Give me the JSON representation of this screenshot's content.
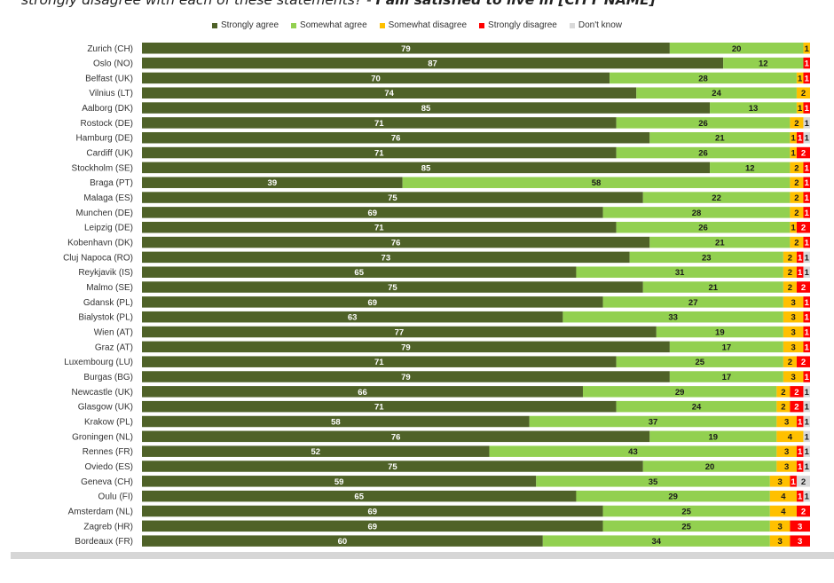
{
  "chart_data": {
    "type": "bar",
    "orientation": "horizontal",
    "stacked": true,
    "title_prefix": "strongly disagree with each of these statements? - ",
    "title_bold": "I am satisfied to live in [CITY NAME]",
    "xlim": [
      0,
      100
    ],
    "legend_position": "top",
    "series": [
      {
        "name": "Strongly agree",
        "color": "#4f6228"
      },
      {
        "name": "Somewhat agree",
        "color": "#92d050"
      },
      {
        "name": "Somewhat disagree",
        "color": "#ffc000"
      },
      {
        "name": "Strongly disagree",
        "color": "#ff0000"
      },
      {
        "name": "Don't know",
        "color": "#d9d9d9"
      }
    ],
    "categories": [
      "Zurich (CH)",
      "Oslo (NO)",
      "Belfast (UK)",
      "Vilnius (LT)",
      "Aalborg (DK)",
      "Rostock (DE)",
      "Hamburg (DE)",
      "Cardiff (UK)",
      "Stockholm (SE)",
      "Braga (PT)",
      "Malaga (ES)",
      "Munchen (DE)",
      "Leipzig (DE)",
      "Kobenhavn (DK)",
      "Cluj Napoca (RO)",
      "Reykjavik (IS)",
      "Malmo (SE)",
      "Gdansk (PL)",
      "Bialystok (PL)",
      "Wien (AT)",
      "Graz (AT)",
      "Luxembourg (LU)",
      "Burgas (BG)",
      "Newcastle (UK)",
      "Glasgow (UK)",
      "Krakow (PL)",
      "Groningen (NL)",
      "Rennes (FR)",
      "Oviedo (ES)",
      "Geneva (CH)",
      "Oulu (FI)",
      "Amsterdam (NL)",
      "Zagreb (HR)",
      "Bordeaux (FR)"
    ],
    "values": [
      [
        79,
        20,
        1,
        0,
        0
      ],
      [
        87,
        12,
        0,
        1,
        0
      ],
      [
        70,
        28,
        1,
        1,
        0
      ],
      [
        74,
        24,
        2,
        0,
        0
      ],
      [
        85,
        13,
        1,
        1,
        0
      ],
      [
        71,
        26,
        2,
        0,
        1
      ],
      [
        76,
        21,
        1,
        1,
        1
      ],
      [
        71,
        26,
        1,
        2,
        0
      ],
      [
        85,
        12,
        2,
        1,
        0
      ],
      [
        39,
        58,
        2,
        1,
        0
      ],
      [
        75,
        22,
        2,
        1,
        0
      ],
      [
        69,
        28,
        2,
        1,
        0
      ],
      [
        71,
        26,
        1,
        2,
        0
      ],
      [
        76,
        21,
        2,
        1,
        0
      ],
      [
        73,
        23,
        2,
        1,
        1
      ],
      [
        65,
        31,
        2,
        1,
        1
      ],
      [
        75,
        21,
        2,
        2,
        0
      ],
      [
        69,
        27,
        3,
        1,
        0
      ],
      [
        63,
        33,
        3,
        1,
        0
      ],
      [
        77,
        19,
        3,
        1,
        0
      ],
      [
        79,
        17,
        3,
        1,
        0
      ],
      [
        71,
        25,
        2,
        2,
        0
      ],
      [
        79,
        17,
        3,
        1,
        0
      ],
      [
        66,
        29,
        2,
        2,
        1
      ],
      [
        71,
        24,
        2,
        2,
        1
      ],
      [
        58,
        37,
        3,
        1,
        1
      ],
      [
        76,
        19,
        4,
        0,
        1
      ],
      [
        52,
        43,
        3,
        1,
        1
      ],
      [
        75,
        20,
        3,
        1,
        1
      ],
      [
        59,
        35,
        3,
        1,
        2
      ],
      [
        65,
        29,
        4,
        1,
        1
      ],
      [
        69,
        25,
        4,
        2,
        0
      ],
      [
        69,
        25,
        3,
        3,
        0
      ],
      [
        60,
        34,
        3,
        3,
        0
      ]
    ]
  }
}
